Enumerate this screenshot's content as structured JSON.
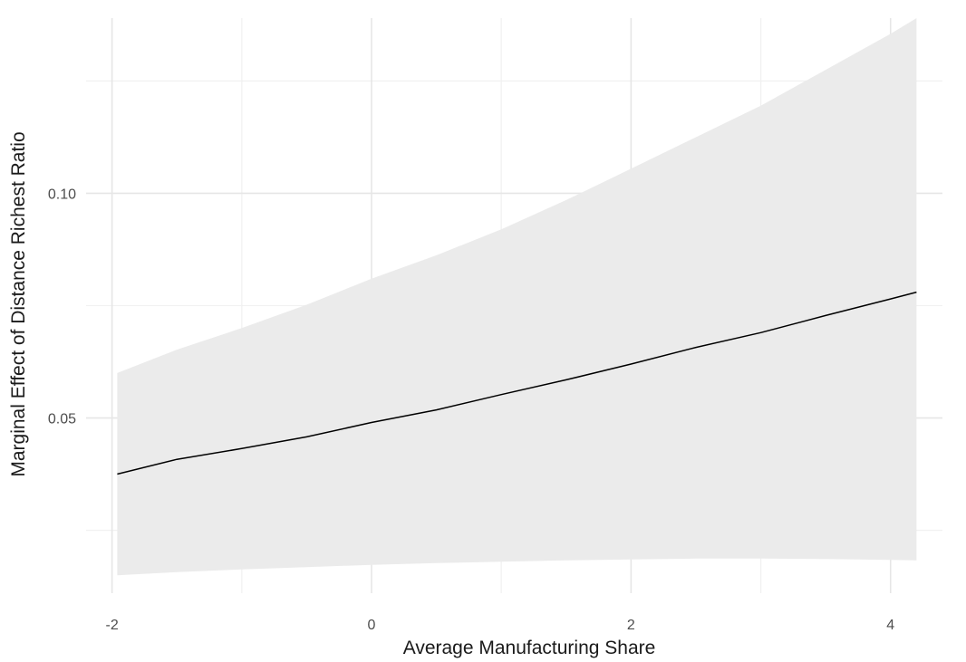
{
  "chart_data": {
    "type": "line",
    "title": "",
    "xlabel": "Average Manufacturing Share",
    "ylabel": "Marginal Effect of Distance Richest Ratio",
    "xlim": [
      -2.2,
      4.4
    ],
    "ylim": [
      0.011,
      0.139
    ],
    "x_ticks": [
      -2,
      0,
      2,
      4
    ],
    "x_tick_labels": [
      "-2",
      "0",
      "2",
      "4"
    ],
    "x_minor": [
      -1,
      1,
      3
    ],
    "y_ticks": [
      0.05,
      0.1
    ],
    "y_tick_labels": [
      "0.05",
      "0.10"
    ],
    "y_minor": [
      0.025,
      0.075,
      0.125
    ],
    "grid": true,
    "series": [
      {
        "x": [
          -1.96,
          -1.5,
          -1.0,
          -0.5,
          0.0,
          0.5,
          1.0,
          1.5,
          2.0,
          2.5,
          3.0,
          3.5,
          4.0,
          4.2
        ],
        "estimate": [
          0.0375,
          0.0408,
          0.0432,
          0.0458,
          0.049,
          0.0518,
          0.0552,
          0.0585,
          0.062,
          0.0657,
          0.069,
          0.0728,
          0.0765,
          0.078
        ],
        "lower": [
          0.015,
          0.0157,
          0.0163,
          0.0168,
          0.0173,
          0.0177,
          0.018,
          0.0183,
          0.0185,
          0.0187,
          0.0187,
          0.0186,
          0.0184,
          0.0183
        ],
        "upper": [
          0.06,
          0.0652,
          0.07,
          0.0752,
          0.081,
          0.0862,
          0.092,
          0.0985,
          0.1055,
          0.1125,
          0.1195,
          0.1275,
          0.1355,
          0.139
        ]
      }
    ]
  }
}
